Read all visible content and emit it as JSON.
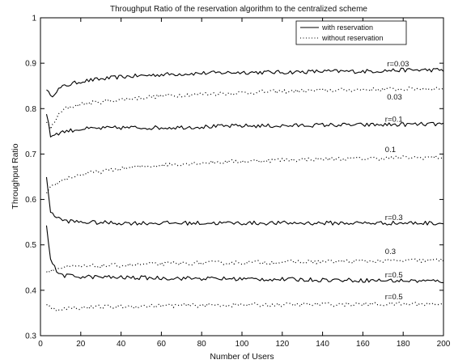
{
  "chart_data": {
    "type": "line",
    "title": "Throughput Ratio of the reservation algorithm to the centralized scheme",
    "xlabel": "Number of Users",
    "ylabel": "Throughput Ratio",
    "xlim": [
      0,
      200
    ],
    "ylim": [
      0.3,
      1.0
    ],
    "xticks": [
      "0",
      "20",
      "40",
      "60",
      "80",
      "100",
      "120",
      "140",
      "160",
      "180",
      "200"
    ],
    "yticks": [
      "0.3",
      "0.4",
      "0.5",
      "0.6",
      "0.7",
      "0.8",
      "0.9",
      "1"
    ],
    "grid": false,
    "legend": {
      "placement": "top-right",
      "entries": [
        {
          "label": "with reservation",
          "style": "solid"
        },
        {
          "label": "without reservation",
          "style": "dotted"
        }
      ]
    },
    "series": [
      {
        "label": "r=0.03",
        "style": "solid",
        "x": [
          3,
          5,
          8,
          12,
          20,
          40,
          60,
          80,
          100,
          120,
          140,
          160,
          180,
          200
        ],
        "y": [
          0.845,
          0.825,
          0.84,
          0.85,
          0.86,
          0.87,
          0.875,
          0.878,
          0.88,
          0.88,
          0.882,
          0.882,
          0.885,
          0.885
        ]
      },
      {
        "label": "0.03",
        "style": "dotted",
        "x": [
          3,
          5,
          8,
          12,
          20,
          40,
          60,
          80,
          100,
          120,
          140,
          160,
          180,
          200
        ],
        "y": [
          0.77,
          0.755,
          0.78,
          0.8,
          0.81,
          0.82,
          0.828,
          0.832,
          0.835,
          0.838,
          0.84,
          0.842,
          0.843,
          0.845
        ]
      },
      {
        "label": "r=0.1",
        "style": "solid",
        "x": [
          3,
          5,
          8,
          12,
          20,
          40,
          60,
          80,
          100,
          120,
          140,
          160,
          180,
          200
        ],
        "y": [
          0.79,
          0.74,
          0.745,
          0.75,
          0.755,
          0.758,
          0.758,
          0.76,
          0.762,
          0.762,
          0.764,
          0.764,
          0.765,
          0.766
        ]
      },
      {
        "label": "0.1",
        "style": "dotted",
        "x": [
          3,
          5,
          8,
          12,
          20,
          40,
          60,
          80,
          100,
          120,
          140,
          160,
          180,
          200
        ],
        "y": [
          0.61,
          0.625,
          0.635,
          0.645,
          0.655,
          0.668,
          0.676,
          0.681,
          0.684,
          0.687,
          0.689,
          0.69,
          0.692,
          0.693
        ]
      },
      {
        "label": "r=0.3",
        "style": "solid",
        "x": [
          3,
          5,
          8,
          12,
          20,
          40,
          60,
          80,
          100,
          120,
          140,
          160,
          180,
          200
        ],
        "y": [
          0.645,
          0.575,
          0.56,
          0.553,
          0.55,
          0.548,
          0.548,
          0.548,
          0.548,
          0.548,
          0.548,
          0.548,
          0.548,
          0.548
        ]
      },
      {
        "label": "0.3",
        "style": "dotted",
        "x": [
          3,
          5,
          8,
          12,
          20,
          40,
          60,
          80,
          100,
          120,
          140,
          160,
          180,
          200
        ],
        "y": [
          0.44,
          0.445,
          0.447,
          0.45,
          0.452,
          0.455,
          0.458,
          0.46,
          0.461,
          0.462,
          0.463,
          0.464,
          0.465,
          0.466
        ]
      },
      {
        "label": "r=0.5",
        "style": "solid",
        "x": [
          3,
          5,
          8,
          12,
          20,
          40,
          60,
          80,
          100,
          120,
          140,
          160,
          180,
          200
        ],
        "y": [
          0.545,
          0.47,
          0.44,
          0.432,
          0.43,
          0.428,
          0.427,
          0.426,
          0.425,
          0.424,
          0.423,
          0.422,
          0.421,
          0.42
        ]
      },
      {
        "label": "r=0.5",
        "style": "dotted",
        "x": [
          3,
          5,
          8,
          12,
          20,
          40,
          60,
          80,
          100,
          120,
          140,
          160,
          180,
          200
        ],
        "y": [
          0.37,
          0.36,
          0.358,
          0.36,
          0.362,
          0.364,
          0.366,
          0.367,
          0.368,
          0.368,
          0.369,
          0.369,
          0.37,
          0.37
        ]
      }
    ],
    "annotations": [
      {
        "text": "r=0.03",
        "x": 172,
        "y": 0.893
      },
      {
        "text": "0.03",
        "x": 172,
        "y": 0.82
      },
      {
        "text": "r=0.1",
        "x": 171,
        "y": 0.771
      },
      {
        "text": "0.1",
        "x": 171,
        "y": 0.704
      },
      {
        "text": "r=0.3",
        "x": 171,
        "y": 0.555
      },
      {
        "text": "0.3",
        "x": 171,
        "y": 0.48
      },
      {
        "text": "r=0.5",
        "x": 171,
        "y": 0.428
      },
      {
        "text": "r=0.5",
        "x": 171,
        "y": 0.38
      }
    ]
  }
}
